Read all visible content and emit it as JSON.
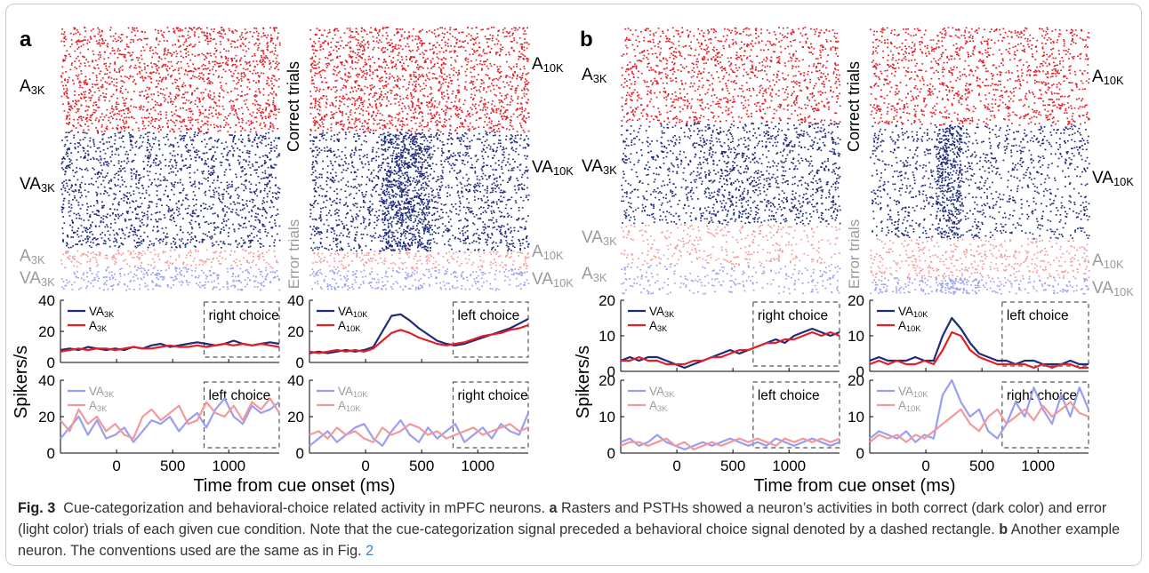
{
  "colors": {
    "dark_red": "#e21f26",
    "dark_blue": "#1f2a7c",
    "light_red": "#f2999a",
    "light_blue": "#9a9ef2",
    "label_gray": "#9a9a9a",
    "caption_link": "#4a7fc0"
  },
  "panels": [
    {
      "letter": "a",
      "time_axis_label": "Time from cue onset (ms)",
      "ylabel": "Spikers/s",
      "raster_side_labels": {
        "correct": "Correct trials",
        "error": "Error trials"
      },
      "subpanels": [
        {
          "raster_groups": [
            "A3K",
            "VA3K",
            "A3K",
            "VA3K"
          ],
          "psth_top": {
            "series": [
              "VA3K",
              "A3K"
            ],
            "choice_label": "right choice",
            "yticks": [
              "0",
              "20",
              "40"
            ]
          },
          "psth_bottom": {
            "series": [
              "VA3K",
              "A3K"
            ],
            "choice_label": "left choice",
            "yticks": [
              "0",
              "20",
              "40"
            ]
          },
          "xticks": [
            "0",
            "500",
            "1000"
          ]
        },
        {
          "raster_groups": [
            "A10K",
            "VA10K",
            "A10K",
            "VA10K"
          ],
          "psth_top": {
            "series": [
              "VA10K",
              "A10K"
            ],
            "choice_label": "left choice",
            "yticks": [
              "0",
              "20",
              "40"
            ]
          },
          "psth_bottom": {
            "series": [
              "VA10K",
              "A10K"
            ],
            "choice_label": "right choice",
            "yticks": [
              "0",
              "20",
              "40"
            ]
          },
          "xticks": [
            "0",
            "500",
            "1000"
          ]
        }
      ]
    },
    {
      "letter": "b",
      "time_axis_label": "Time from cue onset (ms)",
      "ylabel": "Spikers/s",
      "raster_side_labels": {
        "correct": "Correct trials",
        "error": "Error trials"
      },
      "subpanels": [
        {
          "raster_groups": [
            "A3K",
            "VA3K",
            "VA3K",
            "A3K"
          ],
          "psth_top": {
            "series": [
              "VA3K",
              "A3K"
            ],
            "choice_label": "right choice",
            "yticks": [
              "0",
              "10",
              "20"
            ]
          },
          "psth_bottom": {
            "series": [
              "VA3K",
              "A3K"
            ],
            "choice_label": "left choice",
            "yticks": [
              "0",
              "10",
              "20"
            ]
          },
          "xticks": [
            "0",
            "500",
            "1000"
          ]
        },
        {
          "raster_groups": [
            "A10K",
            "VA10K",
            "A10K",
            "VA10K"
          ],
          "psth_top": {
            "series": [
              "VA10K",
              "A10K"
            ],
            "choice_label": "left choice",
            "yticks": [
              "0",
              "10",
              "20"
            ]
          },
          "psth_bottom": {
            "series": [
              "VA10K",
              "A10K"
            ],
            "choice_label": "right choice",
            "yticks": [
              "0",
              "10",
              "20"
            ]
          },
          "xticks": [
            "0",
            "500",
            "1000"
          ]
        }
      ]
    }
  ],
  "caption": {
    "label": "Fig. 3",
    "text_1": "Cue-categorization and behavioral-choice related activity in mPFC neurons.",
    "a_letter": "a",
    "text_2": "Rasters and PSTHs showed a neuron’s activities in both correct (dark color) and error (light color) trials of each given cue condition. Note that the cue-categorization signal preceded a behavioral choice signal denoted by a dashed rectangle.",
    "b_letter": "b",
    "text_3": "Another example neuron. The conventions used are the same as in Fig.",
    "ref": "2"
  },
  "chart_data": [
    {
      "type": "line",
      "panel": "a-left",
      "x_range_ms": [
        -500,
        1450
      ],
      "top": {
        "ylim": [
          0,
          40
        ],
        "series": [
          {
            "name": "VA3K",
            "values": [
              8,
              9,
              8,
              10,
              9,
              8,
              9,
              8,
              10,
              9,
              11,
              12,
              10,
              11,
              12,
              13,
              12,
              11,
              12,
              14,
              12,
              11,
              12,
              13,
              12
            ]
          },
          {
            "name": "A3K",
            "values": [
              7,
              8,
              9,
              8,
              9,
              9,
              8,
              9,
              10,
              9,
              9,
              10,
              11,
              10,
              10,
              11,
              10,
              11,
              12,
              11,
              12,
              11,
              12,
              11,
              10
            ]
          }
        ]
      },
      "bottom": {
        "ylim": [
          0,
          40
        ],
        "series": [
          {
            "name": "VA3K",
            "values": [
              8,
              14,
              20,
              10,
              18,
              8,
              10,
              14,
              6,
              12,
              18,
              16,
              20,
              12,
              18,
              22,
              14,
              24,
              30,
              20,
              16,
              26,
              22,
              24,
              28
            ]
          },
          {
            "name": "A3K",
            "values": [
              18,
              12,
              24,
              16,
              20,
              12,
              16,
              10,
              8,
              20,
              24,
              18,
              22,
              26,
              16,
              18,
              28,
              22,
              20,
              26,
              18,
              28,
              24,
              30,
              22
            ]
          }
        ]
      }
    },
    {
      "type": "line",
      "panel": "a-right",
      "x_range_ms": [
        -500,
        1450
      ],
      "top": {
        "ylim": [
          0,
          40
        ],
        "series": [
          {
            "name": "VA10K",
            "values": [
              6,
              7,
              6,
              7,
              8,
              7,
              8,
              10,
              20,
              30,
              31,
              27,
              22,
              18,
              14,
              12,
              11,
              12,
              14,
              16,
              18,
              20,
              22,
              25,
              28
            ]
          },
          {
            "name": "A10K",
            "values": [
              7,
              6,
              7,
              8,
              7,
              8,
              7,
              9,
              14,
              19,
              21,
              19,
              16,
              14,
              12,
              11,
              12,
              13,
              15,
              17,
              18,
              19,
              21,
              22,
              24
            ]
          }
        ]
      },
      "bottom": {
        "ylim": [
          0,
          40
        ],
        "series": [
          {
            "name": "VA10K",
            "values": [
              4,
              8,
              12,
              6,
              10,
              14,
              16,
              8,
              4,
              12,
              18,
              10,
              6,
              14,
              8,
              12,
              16,
              6,
              10,
              14,
              8,
              16,
              12,
              10,
              22
            ]
          },
          {
            "name": "A10K",
            "values": [
              10,
              12,
              8,
              14,
              10,
              12,
              8,
              6,
              14,
              10,
              12,
              16,
              14,
              10,
              12,
              8,
              10,
              12,
              14,
              10,
              12,
              14,
              16,
              12,
              14
            ]
          }
        ]
      }
    },
    {
      "type": "line",
      "panel": "b-left",
      "x_range_ms": [
        -500,
        1450
      ],
      "top": {
        "ylim": [
          0,
          20
        ],
        "series": [
          {
            "name": "VA3K",
            "values": [
              3,
              4,
              3,
              4,
              4,
              3,
              2,
              1,
              2,
              3,
              4,
              5,
              6,
              5,
              6,
              7,
              8,
              9,
              8,
              10,
              11,
              12,
              11,
              10,
              11
            ]
          },
          {
            "name": "A3K",
            "values": [
              3,
              3,
              4,
              3,
              3,
              2,
              2,
              2,
              3,
              3,
              4,
              4,
              5,
              6,
              6,
              7,
              8,
              8,
              9,
              9,
              10,
              11,
              10,
              11,
              10
            ]
          }
        ]
      },
      "bottom": {
        "ylim": [
          0,
          20
        ],
        "series": [
          {
            "name": "VA3K",
            "values": [
              3,
              4,
              2,
              3,
              5,
              3,
              2,
              1,
              2,
              3,
              2,
              3,
              4,
              3,
              2,
              3,
              2,
              4,
              3,
              2,
              3,
              4,
              3,
              2,
              3
            ]
          },
          {
            "name": "A3K",
            "values": [
              2,
              3,
              3,
              2,
              3,
              4,
              2,
              3,
              1,
              2,
              3,
              2,
              3,
              4,
              3,
              4,
              3,
              2,
              4,
              3,
              4,
              3,
              4,
              3,
              4
            ]
          }
        ]
      }
    },
    {
      "type": "line",
      "panel": "b-right",
      "x_range_ms": [
        -500,
        1450
      ],
      "top": {
        "ylim": [
          0,
          20
        ],
        "series": [
          {
            "name": "VA10K",
            "values": [
              3,
              4,
              3,
              3,
              3,
              4,
              3,
              3,
              10,
              15,
              12,
              8,
              5,
              4,
              3,
              3,
              2,
              3,
              3,
              2,
              2,
              2,
              3,
              2,
              2
            ]
          },
          {
            "name": "A10K",
            "values": [
              2,
              3,
              2,
              3,
              2,
              2,
              3,
              2,
              6,
              11,
              10,
              6,
              4,
              3,
              2,
              2,
              2,
              2,
              1,
              2,
              1,
              2,
              2,
              1,
              1
            ]
          }
        ]
      },
      "bottom": {
        "ylim": [
          0,
          20
        ],
        "series": [
          {
            "name": "VA10K",
            "values": [
              4,
              6,
              5,
              4,
              6,
              3,
              5,
              4,
              16,
              20,
              14,
              10,
              12,
              6,
              4,
              8,
              14,
              10,
              18,
              12,
              8,
              16,
              10,
              18,
              12
            ]
          },
          {
            "name": "A10K",
            "values": [
              3,
              5,
              4,
              5,
              3,
              5,
              4,
              6,
              8,
              10,
              12,
              8,
              6,
              10,
              12,
              8,
              10,
              12,
              9,
              13,
              10,
              12,
              14,
              11,
              10
            ]
          }
        ]
      }
    }
  ]
}
